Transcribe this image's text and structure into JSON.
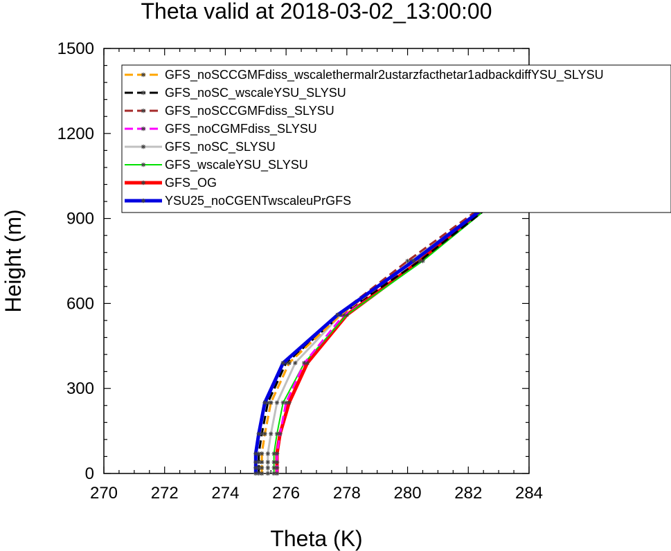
{
  "chart_data": {
    "type": "line",
    "title": "Theta valid at 2018-03-02_13:00:00",
    "xlabel": "Theta (K)",
    "ylabel": "Height (m)",
    "xlim": [
      270,
      284
    ],
    "ylim": [
      0,
      1500
    ],
    "xticks": [
      270,
      272,
      274,
      276,
      278,
      280,
      282,
      284
    ],
    "yticks": [
      0,
      300,
      600,
      900,
      1200,
      1500
    ],
    "xtick_labels": [
      "270",
      "272",
      "274",
      "276",
      "278",
      "280",
      "282",
      "284"
    ],
    "ytick_labels": [
      "0",
      "300",
      "600",
      "900",
      "1200",
      "1500"
    ],
    "grid": false,
    "legend_position": "top-right",
    "y": [
      0,
      20,
      40,
      70,
      140,
      250,
      390,
      560,
      750,
      960,
      1100
    ],
    "series": [
      {
        "name": "GFS_noSCCGMFdiss_wscalethermalr2ustarzfacthetar1adbackdiffYSU_SLYSU",
        "color": "#ffa500",
        "dash": "long",
        "width": 3,
        "x": [
          275.2,
          275.2,
          275.2,
          275.2,
          275.3,
          275.5,
          276.1,
          277.8,
          280.2,
          282.8,
          284.0
        ]
      },
      {
        "name": "GFS_noSC_wscaleYSU_SLYSU",
        "color": "#000000",
        "dash": "long",
        "width": 3,
        "x": [
          275.1,
          275.1,
          275.1,
          275.1,
          275.2,
          275.4,
          276.0,
          277.8,
          280.4,
          282.9,
          284.0
        ]
      },
      {
        "name": "GFS_noSCCGMFdiss_SLYSU",
        "color": "#a52a2a",
        "dash": "long",
        "width": 3,
        "x": [
          275.2,
          275.2,
          275.2,
          275.2,
          275.3,
          275.5,
          276.1,
          277.7,
          280.0,
          282.7,
          284.0
        ]
      },
      {
        "name": "GFS_noCGMFdiss_SLYSU",
        "color": "#ff00ff",
        "dash": "long",
        "width": 3,
        "x": [
          275.7,
          275.7,
          275.7,
          275.7,
          275.8,
          276.0,
          276.6,
          277.9,
          280.2,
          282.8,
          284.0
        ]
      },
      {
        "name": "GFS_noSC_SLYSU",
        "color": "#c0c0c0",
        "dash": "solid",
        "width": 3,
        "x": [
          275.4,
          275.4,
          275.4,
          275.4,
          275.5,
          275.7,
          276.3,
          277.8,
          280.1,
          282.8,
          284.0
        ]
      },
      {
        "name": "GFS_wscaleYSU_SLYSU",
        "color": "#00e000",
        "dash": "solid",
        "width": 2,
        "x": [
          275.6,
          275.6,
          275.6,
          275.6,
          275.7,
          275.9,
          276.6,
          278.0,
          280.5,
          282.9,
          284.0
        ]
      },
      {
        "name": "GFS_OG",
        "color": "#ff0000",
        "dash": "solid",
        "width": 5,
        "x": [
          275.7,
          275.7,
          275.7,
          275.7,
          275.8,
          276.1,
          276.7,
          278.0,
          280.4,
          282.8,
          284.0
        ]
      },
      {
        "name": "YSU25_noCGENTwscaleuPrGFS",
        "color": "#0000e0",
        "dash": "solid",
        "width": 5,
        "x": [
          275.0,
          275.0,
          275.0,
          275.0,
          275.1,
          275.3,
          275.9,
          277.7,
          280.2,
          282.8,
          284.0
        ]
      }
    ]
  }
}
